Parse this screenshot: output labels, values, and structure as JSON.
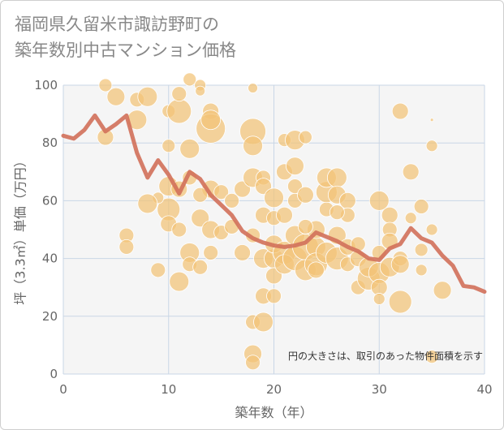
{
  "title_line1": "福岡県久留米市諏訪野町の",
  "title_line2": "築年数別中古マンション価格",
  "chart_data": {
    "type": "scatter",
    "xlabel": "築年数（年）",
    "ylabel": "坪（3.3㎡）単価（万円）",
    "xlim": [
      0,
      40
    ],
    "ylim": [
      0,
      100
    ],
    "xticks": [
      0,
      10,
      20,
      30,
      40
    ],
    "yticks": [
      0,
      20,
      40,
      60,
      80,
      100
    ],
    "grid": true,
    "annotation": "円の大きさは、取引のあった物件面積を示す",
    "colors": {
      "bubble": "#f3c477",
      "line": "#d2705a",
      "grid": "#c9d6e6",
      "plot_bg": "#f5f5f5"
    },
    "trend_line": {
      "x": [
        0,
        1,
        2,
        3,
        4,
        5,
        6,
        7,
        8,
        9,
        10,
        11,
        12,
        13,
        14,
        15,
        16,
        17,
        18,
        19,
        20,
        21,
        22,
        23,
        24,
        25,
        26,
        27,
        28,
        29,
        30,
        31,
        32,
        33,
        34,
        35,
        36,
        37,
        38,
        39,
        40
      ],
      "y": [
        82.5,
        81.5,
        84.5,
        89.5,
        84,
        86.5,
        89.5,
        76.5,
        68,
        74,
        69,
        62.5,
        70,
        67.5,
        62,
        58.5,
        55,
        49.5,
        47,
        45.5,
        44.5,
        44,
        44.5,
        45.5,
        49,
        47.5,
        46,
        44,
        42.5,
        40,
        39.5,
        43.5,
        45,
        50.5,
        47,
        45.5,
        41,
        37.5,
        30.5,
        30,
        28.5
      ]
    },
    "points": [
      {
        "x": 4,
        "y": 100,
        "s": 8
      },
      {
        "x": 5,
        "y": 96,
        "s": 11
      },
      {
        "x": 7,
        "y": 95,
        "s": 9
      },
      {
        "x": 8,
        "y": 96,
        "s": 12
      },
      {
        "x": 4,
        "y": 82,
        "s": 10
      },
      {
        "x": 7,
        "y": 88,
        "s": 12
      },
      {
        "x": 10,
        "y": 91,
        "s": 8
      },
      {
        "x": 11,
        "y": 91,
        "s": 15
      },
      {
        "x": 11,
        "y": 97,
        "s": 9
      },
      {
        "x": 12,
        "y": 102,
        "s": 8
      },
      {
        "x": 13,
        "y": 100,
        "s": 7
      },
      {
        "x": 13,
        "y": 98,
        "s": 6
      },
      {
        "x": 14,
        "y": 91,
        "s": 10
      },
      {
        "x": 14,
        "y": 85,
        "s": 18
      },
      {
        "x": 14,
        "y": 88,
        "s": 12
      },
      {
        "x": 12,
        "y": 78,
        "s": 12
      },
      {
        "x": 10,
        "y": 79,
        "s": 8
      },
      {
        "x": 18,
        "y": 84,
        "s": 16
      },
      {
        "x": 18,
        "y": 99,
        "s": 6
      },
      {
        "x": 18,
        "y": 79,
        "s": 12
      },
      {
        "x": 21,
        "y": 81,
        "s": 8
      },
      {
        "x": 22,
        "y": 81,
        "s": 12
      },
      {
        "x": 23,
        "y": 82,
        "s": 8
      },
      {
        "x": 32,
        "y": 91,
        "s": 10
      },
      {
        "x": 35,
        "y": 79,
        "s": 7
      },
      {
        "x": 35,
        "y": 88,
        "s": 2
      },
      {
        "x": 33,
        "y": 70,
        "s": 10
      },
      {
        "x": 30,
        "y": 60,
        "s": 12
      },
      {
        "x": 31,
        "y": 55,
        "s": 10
      },
      {
        "x": 34,
        "y": 58,
        "s": 9
      },
      {
        "x": 33,
        "y": 54,
        "s": 7
      },
      {
        "x": 35,
        "y": 50,
        "s": 7
      },
      {
        "x": 34,
        "y": 43,
        "s": 8
      },
      {
        "x": 34,
        "y": 36,
        "s": 7
      },
      {
        "x": 36,
        "y": 29,
        "s": 11
      },
      {
        "x": 32,
        "y": 25,
        "s": 14
      },
      {
        "x": 10,
        "y": 65,
        "s": 12
      },
      {
        "x": 10,
        "y": 57,
        "s": 14
      },
      {
        "x": 11,
        "y": 64,
        "s": 10
      },
      {
        "x": 9,
        "y": 61,
        "s": 7
      },
      {
        "x": 8,
        "y": 59,
        "s": 12
      },
      {
        "x": 6,
        "y": 48,
        "s": 9
      },
      {
        "x": 6,
        "y": 44,
        "s": 9
      },
      {
        "x": 9,
        "y": 36,
        "s": 9
      },
      {
        "x": 10,
        "y": 52,
        "s": 10
      },
      {
        "x": 11,
        "y": 50,
        "s": 9
      },
      {
        "x": 12,
        "y": 42,
        "s": 12
      },
      {
        "x": 12,
        "y": 38,
        "s": 9
      },
      {
        "x": 11,
        "y": 32,
        "s": 12
      },
      {
        "x": 13,
        "y": 37,
        "s": 9
      },
      {
        "x": 14,
        "y": 42,
        "s": 9
      },
      {
        "x": 13,
        "y": 54,
        "s": 11
      },
      {
        "x": 14,
        "y": 50,
        "s": 11
      },
      {
        "x": 15,
        "y": 49,
        "s": 9
      },
      {
        "x": 14,
        "y": 64,
        "s": 11
      },
      {
        "x": 15,
        "y": 63,
        "s": 9
      },
      {
        "x": 12,
        "y": 68,
        "s": 9
      },
      {
        "x": 13,
        "y": 62,
        "s": 9
      },
      {
        "x": 16,
        "y": 51,
        "s": 9
      },
      {
        "x": 17,
        "y": 64,
        "s": 10
      },
      {
        "x": 18,
        "y": 68,
        "s": 12
      },
      {
        "x": 19,
        "y": 68,
        "s": 9
      },
      {
        "x": 19,
        "y": 65,
        "s": 10
      },
      {
        "x": 20,
        "y": 61,
        "s": 12
      },
      {
        "x": 19,
        "y": 55,
        "s": 10
      },
      {
        "x": 20,
        "y": 54,
        "s": 9
      },
      {
        "x": 17,
        "y": 42,
        "s": 10
      },
      {
        "x": 18,
        "y": 48,
        "s": 9
      },
      {
        "x": 18,
        "y": 18,
        "s": 9
      },
      {
        "x": 19,
        "y": 18,
        "s": 12
      },
      {
        "x": 18,
        "y": 7,
        "s": 11
      },
      {
        "x": 18,
        "y": 4,
        "s": 9
      },
      {
        "x": 19,
        "y": 27,
        "s": 10
      },
      {
        "x": 20,
        "y": 27,
        "s": 9
      },
      {
        "x": 19,
        "y": 40,
        "s": 12
      },
      {
        "x": 20,
        "y": 40,
        "s": 12
      },
      {
        "x": 20,
        "y": 34,
        "s": 10
      },
      {
        "x": 20,
        "y": 45,
        "s": 11
      },
      {
        "x": 21,
        "y": 42,
        "s": 14
      },
      {
        "x": 21,
        "y": 38,
        "s": 12
      },
      {
        "x": 22,
        "y": 40,
        "s": 15
      },
      {
        "x": 22,
        "y": 48,
        "s": 12
      },
      {
        "x": 23,
        "y": 44,
        "s": 16
      },
      {
        "x": 23,
        "y": 36,
        "s": 13
      },
      {
        "x": 22,
        "y": 60,
        "s": 9
      },
      {
        "x": 21,
        "y": 70,
        "s": 10
      },
      {
        "x": 22,
        "y": 65,
        "s": 9
      },
      {
        "x": 22,
        "y": 72,
        "s": 11
      },
      {
        "x": 23,
        "y": 62,
        "s": 10
      },
      {
        "x": 24,
        "y": 44,
        "s": 12
      },
      {
        "x": 24,
        "y": 38,
        "s": 14
      },
      {
        "x": 24,
        "y": 50,
        "s": 11
      },
      {
        "x": 25,
        "y": 42,
        "s": 13
      },
      {
        "x": 25,
        "y": 57,
        "s": 9
      },
      {
        "x": 25,
        "y": 63,
        "s": 13
      },
      {
        "x": 25,
        "y": 68,
        "s": 12
      },
      {
        "x": 26,
        "y": 68,
        "s": 12
      },
      {
        "x": 26,
        "y": 62,
        "s": 11
      },
      {
        "x": 26,
        "y": 40,
        "s": 14
      },
      {
        "x": 26,
        "y": 48,
        "s": 11
      },
      {
        "x": 27,
        "y": 60,
        "s": 10
      },
      {
        "x": 27,
        "y": 55,
        "s": 9
      },
      {
        "x": 27,
        "y": 44,
        "s": 10
      },
      {
        "x": 27,
        "y": 38,
        "s": 9
      },
      {
        "x": 28,
        "y": 45,
        "s": 9
      },
      {
        "x": 28,
        "y": 30,
        "s": 9
      },
      {
        "x": 28,
        "y": 40,
        "s": 10
      },
      {
        "x": 29,
        "y": 33,
        "s": 14
      },
      {
        "x": 29,
        "y": 37,
        "s": 12
      },
      {
        "x": 30,
        "y": 35,
        "s": 13
      },
      {
        "x": 30,
        "y": 30,
        "s": 10
      },
      {
        "x": 30,
        "y": 26,
        "s": 7
      },
      {
        "x": 30,
        "y": 42,
        "s": 9
      },
      {
        "x": 31,
        "y": 37,
        "s": 12
      },
      {
        "x": 31,
        "y": 50,
        "s": 9
      },
      {
        "x": 31,
        "y": 46,
        "s": 10
      },
      {
        "x": 32,
        "y": 40,
        "s": 9
      },
      {
        "x": 32,
        "y": 38,
        "s": 11
      },
      {
        "x": 35,
        "y": 6,
        "s": 8
      },
      {
        "x": 24,
        "y": 36,
        "s": 10
      },
      {
        "x": 23,
        "y": 51,
        "s": 9
      },
      {
        "x": 21,
        "y": 55,
        "s": 10
      },
      {
        "x": 26,
        "y": 56,
        "s": 9
      },
      {
        "x": 16,
        "y": 60,
        "s": 9
      }
    ]
  }
}
